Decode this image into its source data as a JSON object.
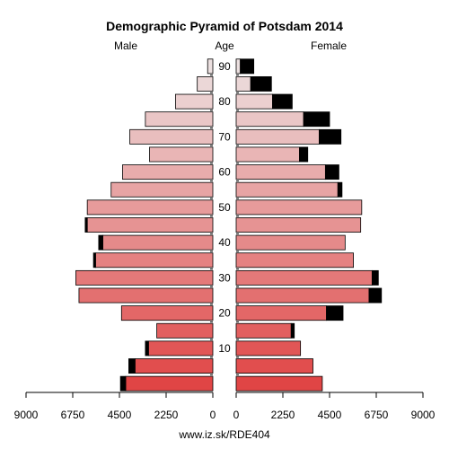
{
  "chart_data": {
    "type": "bar",
    "title": "Demographic Pyramid of Potsdam 2014",
    "left_label": "Male",
    "center_label": "Age",
    "right_label": "Female",
    "age_ticks": [
      "10",
      "20",
      "30",
      "40",
      "50",
      "60",
      "70",
      "80",
      "90"
    ],
    "x_ticks_left": [
      "9000",
      "6750",
      "4500",
      "2250",
      "0"
    ],
    "x_ticks_right": [
      "0",
      "2250",
      "4500",
      "6750",
      "9000"
    ],
    "xlim": [
      0,
      9000
    ],
    "age_groups": [
      "0-4",
      "5-9",
      "10-14",
      "15-19",
      "20-24",
      "25-29",
      "30-34",
      "35-39",
      "40-44",
      "45-49",
      "50-54",
      "55-59",
      "60-64",
      "65-69",
      "70-74",
      "75-79",
      "80-84",
      "85-89",
      "90+"
    ],
    "series": [
      {
        "name": "Male",
        "values": [
          4200,
          3750,
          3100,
          2700,
          4400,
          6450,
          6600,
          5650,
          5300,
          6050,
          6050,
          4900,
          4350,
          3050,
          4000,
          3250,
          1800,
          750,
          250
        ],
        "excess": [
          250,
          300,
          150,
          0,
          0,
          0,
          0,
          100,
          200,
          100,
          0,
          0,
          0,
          0,
          0,
          0,
          0,
          0,
          0
        ]
      },
      {
        "name": "Female",
        "values": [
          4150,
          3700,
          3100,
          2650,
          4350,
          6400,
          6550,
          5650,
          5250,
          6000,
          6050,
          4900,
          4300,
          3050,
          4000,
          3250,
          1750,
          700,
          200
        ],
        "excess": [
          0,
          0,
          0,
          150,
          800,
          600,
          300,
          0,
          0,
          0,
          0,
          200,
          650,
          400,
          1050,
          1250,
          950,
          1000,
          650
        ]
      }
    ],
    "colors": {
      "excess": "#000000",
      "young": "#e04545",
      "old": "#ece0e0"
    },
    "grid": false,
    "legend": "none"
  },
  "footer": {
    "source": "www.iz.sk/RDE404"
  }
}
